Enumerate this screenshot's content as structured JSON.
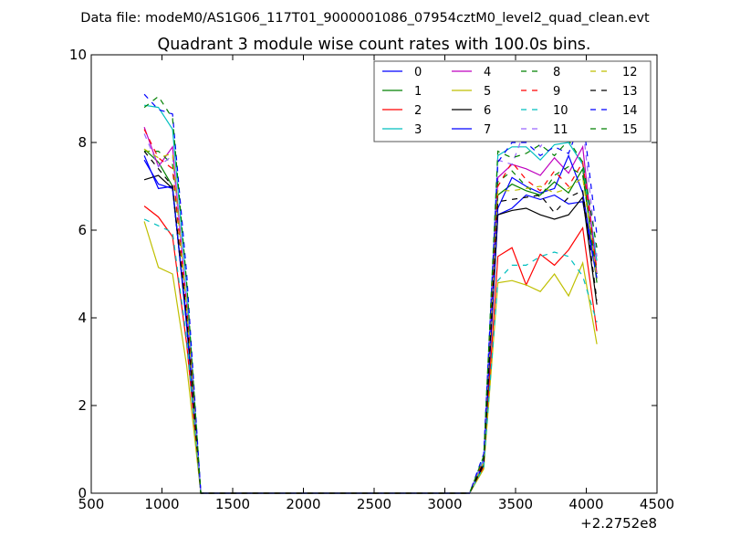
{
  "figure": {
    "suptitle": "Data file: modeM0/AS1G06_117T01_9000001086_07954cztM0_level2_quad_clean.evt"
  },
  "chart_data": {
    "type": "line",
    "title": "Quadrant 3 module wise count rates with 100.0s bins.",
    "xlabel": "",
    "ylabel": "",
    "x_offset_label": "+2.2752e8",
    "xlim": [
      500,
      4500
    ],
    "ylim": [
      0,
      10
    ],
    "xticks": [
      500,
      1000,
      1500,
      2000,
      2500,
      3000,
      3500,
      4000,
      4500
    ],
    "yticks": [
      0,
      2,
      4,
      6,
      8,
      10
    ],
    "grid": false,
    "legend_position": "top-right",
    "x": [
      875,
      975,
      1075,
      1175,
      1275,
      1375,
      1475,
      1575,
      1675,
      1775,
      1875,
      1975,
      2075,
      2175,
      2275,
      2375,
      2475,
      2575,
      2675,
      2775,
      2875,
      2975,
      3075,
      3175,
      3275,
      3375,
      3475,
      3575,
      3675,
      3775,
      3875,
      3975,
      4075
    ],
    "series": [
      {
        "name": "0",
        "color": "#0000ff",
        "dash": "solid",
        "values": [
          7.7,
          6.95,
          7.0,
          3.8,
          0,
          0,
          0,
          0,
          0,
          0,
          0,
          0,
          0,
          0,
          0,
          0,
          0,
          0,
          0,
          0,
          0,
          0,
          0,
          0,
          0.65,
          6.35,
          6.5,
          6.8,
          6.7,
          6.8,
          6.6,
          6.65,
          4.9
        ]
      },
      {
        "name": "1",
        "color": "#008000",
        "dash": "solid",
        "values": [
          7.85,
          7.55,
          7.0,
          3.9,
          0,
          0,
          0,
          0,
          0,
          0,
          0,
          0,
          0,
          0,
          0,
          0,
          0,
          0,
          0,
          0,
          0,
          0,
          0,
          0,
          0.7,
          6.8,
          7.05,
          6.9,
          6.8,
          7.1,
          6.85,
          7.4,
          4.8
        ]
      },
      {
        "name": "2",
        "color": "#ff0000",
        "dash": "solid",
        "values": [
          6.55,
          6.3,
          5.85,
          3.4,
          0,
          0,
          0,
          0,
          0,
          0,
          0,
          0,
          0,
          0,
          0,
          0,
          0,
          0,
          0,
          0,
          0,
          0,
          0,
          0,
          0.6,
          5.4,
          5.6,
          4.75,
          5.45,
          5.2,
          5.55,
          6.05,
          3.7
        ]
      },
      {
        "name": "3",
        "color": "#00bfbf",
        "dash": "solid",
        "values": [
          8.85,
          8.8,
          8.3,
          4.7,
          0,
          0,
          0,
          0,
          0,
          0,
          0,
          0,
          0,
          0,
          0,
          0,
          0,
          0,
          0,
          0,
          0,
          0,
          0,
          0,
          0.8,
          7.7,
          7.9,
          7.9,
          7.6,
          7.95,
          8.0,
          7.5,
          5.3
        ]
      },
      {
        "name": "4",
        "color": "#bf00bf",
        "dash": "solid",
        "values": [
          8.35,
          7.45,
          7.9,
          4.3,
          0,
          0,
          0,
          0,
          0,
          0,
          0,
          0,
          0,
          0,
          0,
          0,
          0,
          0,
          0,
          0,
          0,
          0,
          0,
          0,
          0.75,
          7.2,
          7.5,
          7.4,
          7.25,
          7.65,
          7.3,
          7.9,
          5.0
        ]
      },
      {
        "name": "5",
        "color": "#bfbf00",
        "dash": "solid",
        "values": [
          6.2,
          5.15,
          5.0,
          2.9,
          0,
          0,
          0,
          0,
          0,
          0,
          0,
          0,
          0,
          0,
          0,
          0,
          0,
          0,
          0,
          0,
          0,
          0,
          0,
          0,
          0.55,
          4.8,
          4.85,
          4.75,
          4.6,
          5.0,
          4.5,
          5.25,
          3.4
        ]
      },
      {
        "name": "6",
        "color": "#000000",
        "dash": "solid",
        "values": [
          7.15,
          7.25,
          6.95,
          3.9,
          0,
          0,
          0,
          0,
          0,
          0,
          0,
          0,
          0,
          0,
          0,
          0,
          0,
          0,
          0,
          0,
          0,
          0,
          0,
          0,
          0.65,
          6.35,
          6.45,
          6.5,
          6.35,
          6.25,
          6.35,
          6.75,
          4.3
        ]
      },
      {
        "name": "7",
        "color": "#0000ff",
        "dash": "solid",
        "values": [
          7.6,
          7.05,
          6.95,
          3.9,
          0,
          0,
          0,
          0,
          0,
          0,
          0,
          0,
          0,
          0,
          0,
          0,
          0,
          0,
          0,
          0,
          0,
          0,
          0,
          0,
          0.7,
          6.5,
          7.2,
          7.0,
          6.85,
          6.95,
          7.7,
          6.85,
          4.9
        ]
      },
      {
        "name": "8",
        "color": "#008000",
        "dash": "dashed",
        "values": [
          7.8,
          7.8,
          7.5,
          4.1,
          0,
          0,
          0,
          0,
          0,
          0,
          0,
          0,
          0,
          0,
          0,
          0,
          0,
          0,
          0,
          0,
          0,
          0,
          0,
          0,
          0.75,
          7.1,
          7.35,
          7.0,
          6.75,
          7.25,
          7.45,
          7.25,
          5.0
        ]
      },
      {
        "name": "9",
        "color": "#ff0000",
        "dash": "dashed",
        "values": [
          8.3,
          7.65,
          7.4,
          4.2,
          0,
          0,
          0,
          0,
          0,
          0,
          0,
          0,
          0,
          0,
          0,
          0,
          0,
          0,
          0,
          0,
          0,
          0,
          0,
          0,
          0.75,
          7.0,
          7.55,
          7.15,
          6.9,
          7.35,
          7.0,
          7.55,
          5.1
        ]
      },
      {
        "name": "10",
        "color": "#00bfbf",
        "dash": "dashed",
        "values": [
          6.25,
          6.1,
          5.95,
          3.5,
          0,
          0,
          0,
          0,
          0,
          0,
          0,
          0,
          0,
          0,
          0,
          0,
          0,
          0,
          0,
          0,
          0,
          0,
          0,
          0,
          0.6,
          4.85,
          5.2,
          5.2,
          5.4,
          5.5,
          5.4,
          4.95,
          3.9
        ]
      },
      {
        "name": "11",
        "color": "#9966ff",
        "dash": "dashed",
        "values": [
          8.2,
          7.45,
          7.7,
          4.3,
          0,
          0,
          0,
          0,
          0,
          0,
          0,
          0,
          0,
          0,
          0,
          0,
          0,
          0,
          0,
          0,
          0,
          0,
          0,
          0,
          0.75,
          7.6,
          7.5,
          8.35,
          7.9,
          8.35,
          8.5,
          8.4,
          5.4
        ]
      },
      {
        "name": "12",
        "color": "#bfbf00",
        "dash": "dashed",
        "values": [
          7.85,
          7.65,
          7.75,
          4.2,
          0,
          0,
          0,
          0,
          0,
          0,
          0,
          0,
          0,
          0,
          0,
          0,
          0,
          0,
          0,
          0,
          0,
          0,
          0,
          0,
          0.7,
          6.9,
          6.9,
          6.95,
          7.0,
          6.85,
          6.95,
          7.2,
          4.9
        ]
      },
      {
        "name": "13",
        "color": "#000000",
        "dash": "dashed",
        "values": [
          7.8,
          7.4,
          7.0,
          4.0,
          0,
          0,
          0,
          0,
          0,
          0,
          0,
          0,
          0,
          0,
          0,
          0,
          0,
          0,
          0,
          0,
          0,
          0,
          0,
          0,
          0.7,
          6.65,
          6.7,
          6.75,
          6.8,
          6.4,
          6.75,
          6.9,
          4.4
        ]
      },
      {
        "name": "14",
        "color": "#0000ff",
        "dash": "dashed",
        "values": [
          9.1,
          8.75,
          8.65,
          5.0,
          0,
          0,
          0,
          0,
          0,
          0,
          0,
          0,
          0,
          0,
          0,
          0,
          0,
          0,
          0,
          0,
          0,
          0,
          0,
          0,
          0.9,
          7.55,
          8.0,
          8.0,
          7.7,
          7.9,
          7.75,
          8.6,
          5.9
        ]
      },
      {
        "name": "15",
        "color": "#008000",
        "dash": "dashed",
        "values": [
          8.8,
          9.05,
          8.55,
          4.8,
          0,
          0,
          0,
          0,
          0,
          0,
          0,
          0,
          0,
          0,
          0,
          0,
          0,
          0,
          0,
          0,
          0,
          0,
          0,
          0,
          0.85,
          7.8,
          7.65,
          7.75,
          7.95,
          7.7,
          8.05,
          7.55,
          5.6
        ]
      }
    ]
  }
}
